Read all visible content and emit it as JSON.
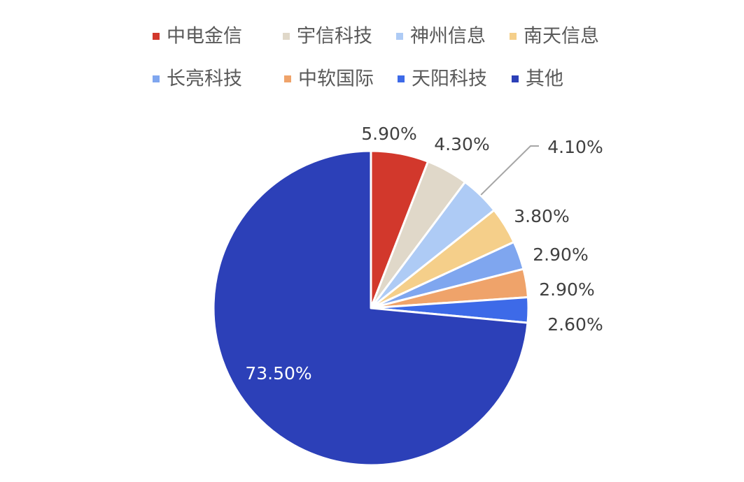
{
  "chart_data": {
    "type": "pie",
    "title": "",
    "unit": "%",
    "legend_position": "top",
    "start_angle_deg": 0,
    "direction": "clockwise",
    "slices": [
      {
        "name": "中电金信",
        "value": 5.9,
        "label": "5.90%",
        "color": "#d2382c"
      },
      {
        "name": "宇信科技",
        "value": 4.3,
        "label": "4.30%",
        "color": "#e0d8c9"
      },
      {
        "name": "神州信息",
        "value": 4.1,
        "label": "4.10%",
        "color": "#aecbf5"
      },
      {
        "name": "南天信息",
        "value": 3.8,
        "label": "3.80%",
        "color": "#f5cf8a"
      },
      {
        "name": "长亮科技",
        "value": 2.9,
        "label": "2.90%",
        "color": "#7fa6ef"
      },
      {
        "name": "中软国际",
        "value": 2.9,
        "label": "2.90%",
        "color": "#efa36a"
      },
      {
        "name": "天阳科技",
        "value": 2.6,
        "label": "2.60%",
        "color": "#3d6ae8"
      },
      {
        "name": "其他",
        "value": 73.5,
        "label": "73.50%",
        "color": "#2c40b8"
      }
    ]
  }
}
